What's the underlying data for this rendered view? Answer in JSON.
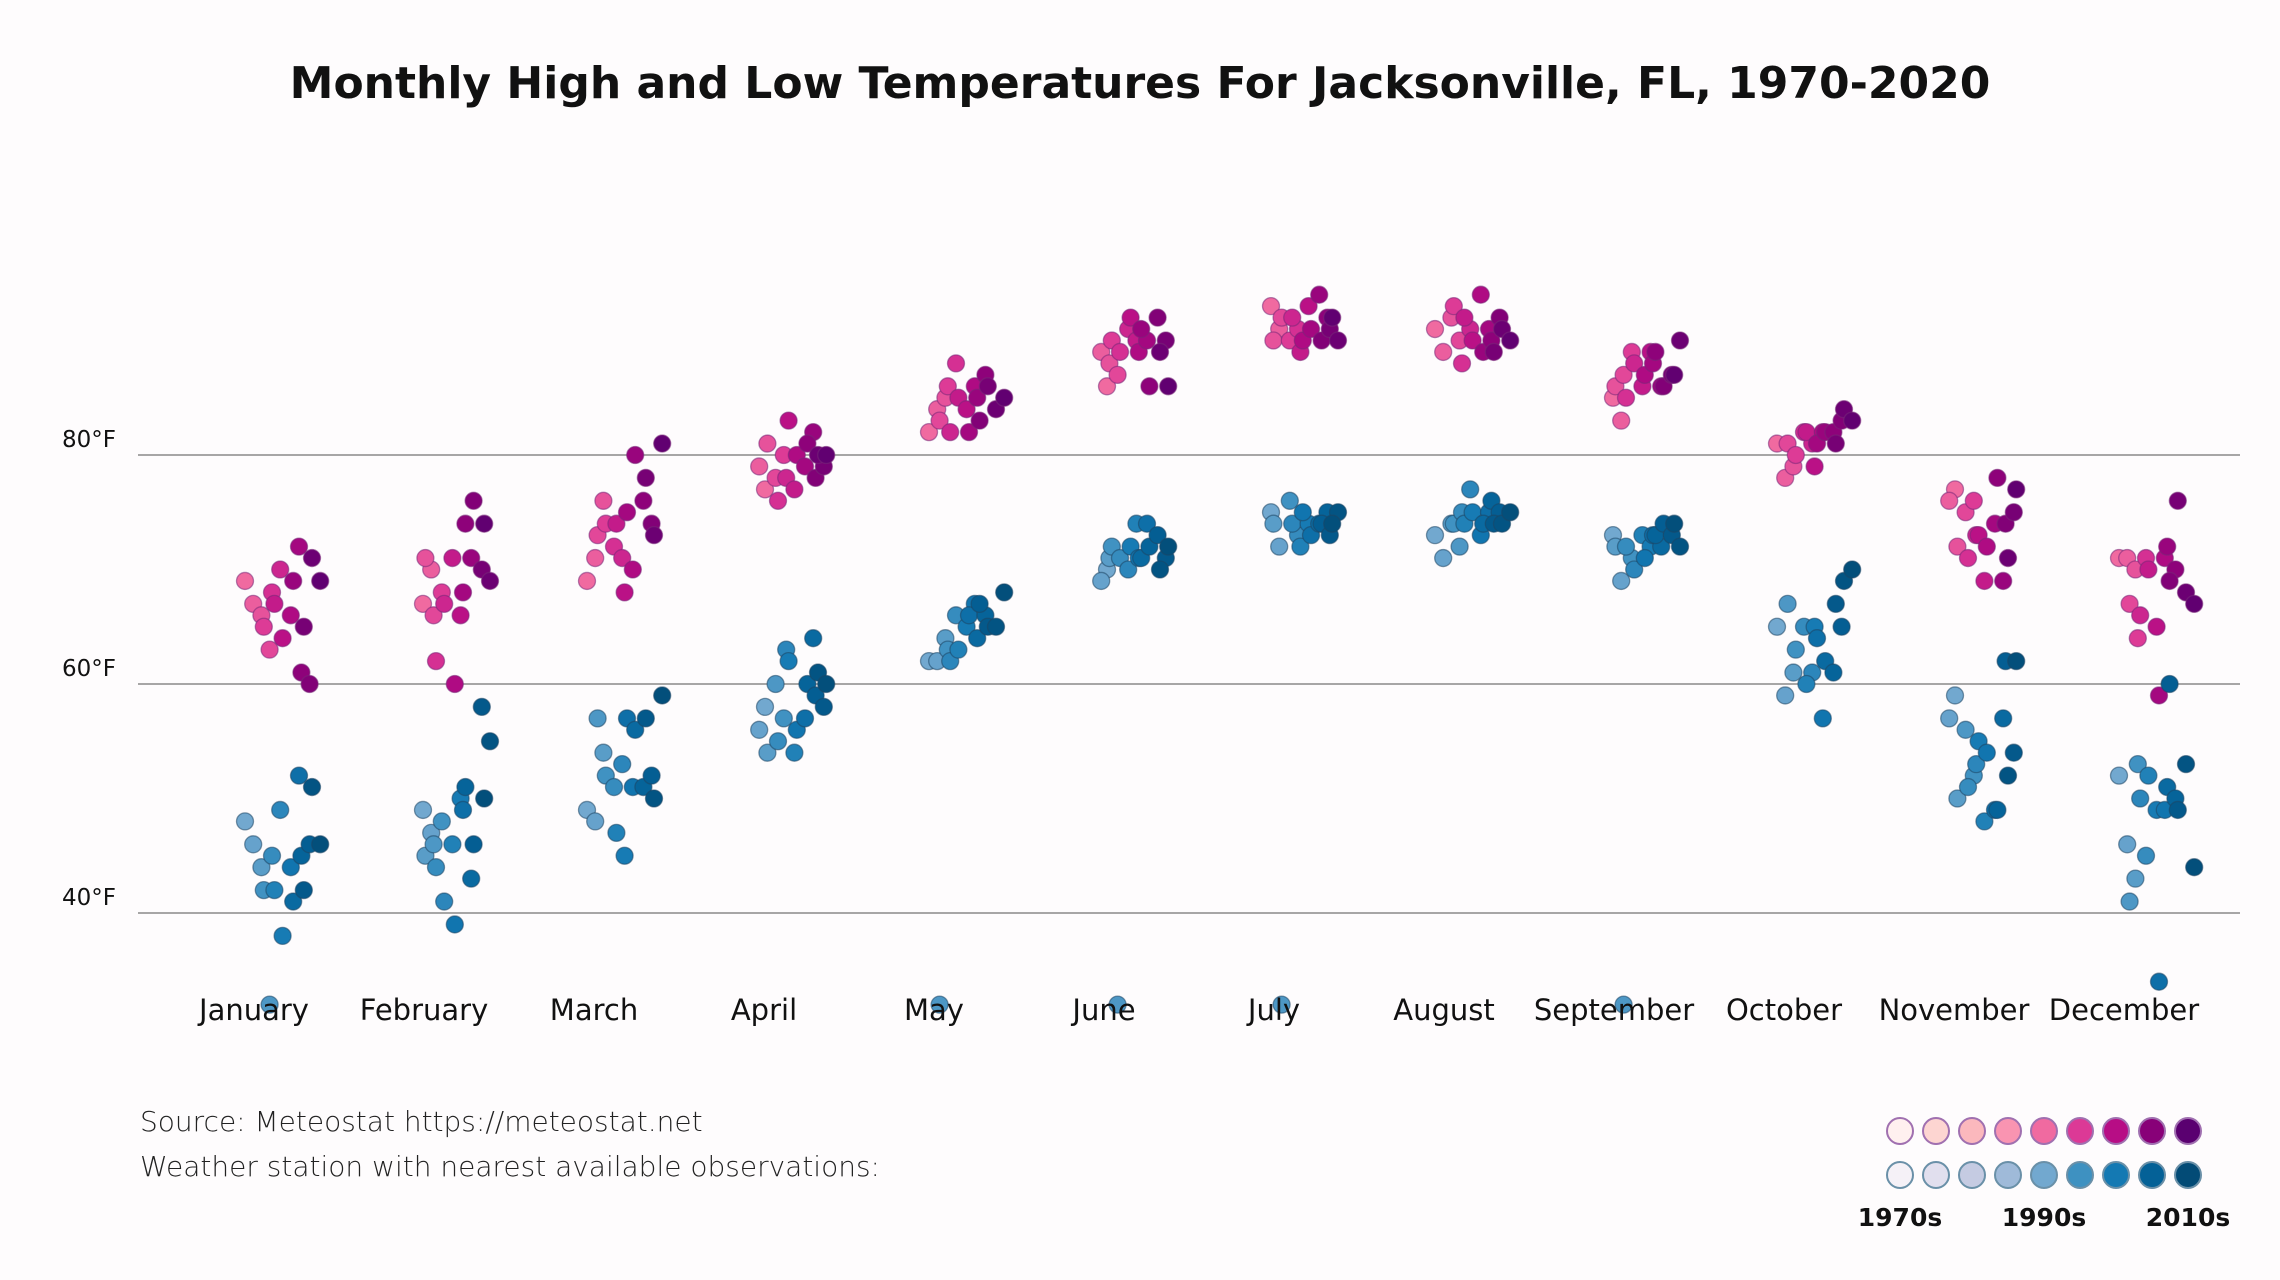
{
  "chart_data": {
    "type": "scatter",
    "title": "Monthly High and Low Temperatures For Jacksonville, FL, 1970-2020",
    "xlabel": "",
    "ylabel": "",
    "categories": [
      "January",
      "February",
      "March",
      "April",
      "May",
      "June",
      "July",
      "August",
      "September",
      "October",
      "November",
      "December"
    ],
    "years": [
      1970,
      1973,
      1976,
      1979,
      1982,
      1985,
      1988,
      1991,
      1994,
      1997,
      2000,
      2003,
      2006,
      2009,
      2012,
      2015,
      2018
    ],
    "y_ticks": [
      {
        "value": 40,
        "label": "40°F"
      },
      {
        "value": 60,
        "label": "60°F"
      },
      {
        "value": 80,
        "label": "80°F"
      }
    ],
    "ylim": [
      30,
      97
    ],
    "grid": true,
    "series": [
      {
        "name": "High",
        "color_scale": [
          "#f06aa0",
          "#dc3996",
          "#b70d85",
          "#880178",
          "#5a0070"
        ],
        "values": [
          [
            69,
            67,
            66,
            63,
            65,
            68,
            70,
            67,
            64,
            66,
            72,
            69,
            61,
            60,
            65,
            71,
            69
          ],
          [
            67,
            70,
            71,
            66,
            68,
            62,
            67,
            71,
            66,
            60,
            68,
            71,
            74,
            76,
            70,
            69,
            74
          ],
          [
            69,
            71,
            76,
            73,
            74,
            72,
            71,
            74,
            68,
            70,
            75,
            80,
            76,
            74,
            78,
            73,
            81
          ],
          [
            77,
            79,
            81,
            78,
            80,
            76,
            78,
            77,
            83,
            80,
            79,
            82,
            81,
            78,
            79,
            80,
            80
          ],
          [
            82,
            84,
            85,
            83,
            86,
            88,
            82,
            85,
            84,
            86,
            82,
            85,
            87,
            83,
            86,
            84,
            85
          ],
          [
            86,
            89,
            88,
            87,
            90,
            89,
            91,
            90,
            92,
            89,
            90,
            91,
            86,
            92,
            90,
            89,
            86
          ],
          [
            93,
            91,
            90,
            92,
            90,
            91,
            92,
            89,
            93,
            90,
            91,
            94,
            92,
            90,
            91,
            90,
            92
          ],
          [
            91,
            89,
            92,
            90,
            93,
            88,
            91,
            92,
            90,
            94,
            91,
            89,
            90,
            92,
            89,
            91,
            90
          ],
          [
            85,
            83,
            86,
            87,
            89,
            85,
            88,
            86,
            89,
            87,
            88,
            86,
            89,
            86,
            87,
            90,
            87
          ],
          [
            81,
            78,
            79,
            81,
            80,
            82,
            81,
            82,
            79,
            82,
            81,
            82,
            82,
            83,
            81,
            84,
            83
          ],
          [
            77,
            76,
            72,
            75,
            76,
            71,
            73,
            69,
            73,
            72,
            74,
            69,
            78,
            74,
            75,
            71,
            77
          ],
          [
            71,
            71,
            70,
            67,
            64,
            71,
            66,
            70,
            65,
            71,
            59,
            72,
            70,
            69,
            76,
            68,
            67
          ]
        ]
      },
      {
        "name": "Low",
        "color_scale": [
          "#72a8cf",
          "#3e91c1",
          "#1479b3",
          "#046197",
          "#034b76"
        ],
        "values": [
          [
            48,
            46,
            44,
            32,
            42,
            45,
            49,
            42,
            38,
            44,
            52,
            41,
            45,
            46,
            42,
            51,
            46
          ],
          [
            49,
            47,
            45,
            46,
            48,
            44,
            41,
            46,
            50,
            39,
            49,
            43,
            51,
            46,
            58,
            55,
            50
          ],
          [
            49,
            48,
            54,
            57,
            52,
            51,
            53,
            47,
            45,
            51,
            57,
            56,
            51,
            52,
            57,
            50,
            59
          ],
          [
            58,
            56,
            54,
            60,
            57,
            55,
            63,
            54,
            62,
            56,
            57,
            64,
            60,
            59,
            58,
            61,
            60
          ],
          [
            62,
            62,
            64,
            32,
            63,
            66,
            62,
            63,
            65,
            67,
            66,
            64,
            66,
            67,
            65,
            65,
            68
          ],
          [
            70,
            69,
            71,
            32,
            72,
            71,
            70,
            74,
            72,
            71,
            74,
            71,
            72,
            73,
            71,
            70,
            72
          ],
          [
            75,
            72,
            74,
            32,
            76,
            73,
            74,
            72,
            74,
            75,
            73,
            74,
            75,
            74,
            73,
            75,
            74
          ],
          [
            73,
            71,
            74,
            72,
            74,
            75,
            77,
            74,
            75,
            73,
            75,
            74,
            76,
            75,
            74,
            74,
            75
          ],
          [
            73,
            69,
            72,
            32,
            71,
            72,
            70,
            73,
            72,
            71,
            73,
            72,
            73,
            74,
            73,
            72,
            74
          ],
          [
            65,
            59,
            61,
            67,
            63,
            65,
            61,
            60,
            65,
            57,
            64,
            62,
            61,
            65,
            67,
            69,
            70
          ],
          [
            59,
            57,
            50,
            56,
            52,
            51,
            53,
            48,
            55,
            54,
            49,
            57,
            49,
            62,
            54,
            52,
            62
          ],
          [
            52,
            46,
            43,
            41,
            53,
            45,
            50,
            52,
            49,
            49,
            34,
            51,
            50,
            60,
            49,
            53,
            44
          ]
        ]
      }
    ],
    "legend": {
      "placement": "bottom-right",
      "high_colors": [
        "#fff0ef",
        "#fdd5d1",
        "#fbb8bd",
        "#f994b1",
        "#f06aa0",
        "#dc3996",
        "#b70d85",
        "#880178",
        "#5a0070"
      ],
      "low_colors": [
        "#f5f1f7",
        "#e1dfee",
        "#c5cbe2",
        "#9fbad9",
        "#72a8cf",
        "#3e91c1",
        "#1479b3",
        "#046197",
        "#034b76"
      ],
      "labels": [
        "1970s",
        "1990s",
        "2010s"
      ]
    }
  },
  "footer": {
    "source": "Source: Meteostat https://meteostat.net",
    "station": "Weather station with nearest available observations:"
  }
}
